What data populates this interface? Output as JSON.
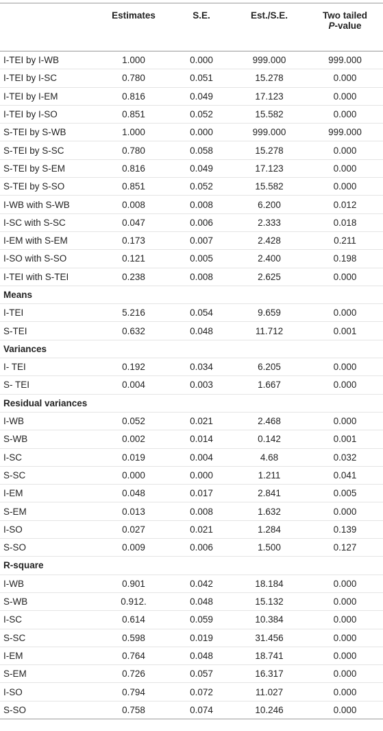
{
  "table": {
    "header": {
      "columns": [
        "Estimates",
        "S.E.",
        "Est./S.E."
      ],
      "last": {
        "line1": "Two tailed",
        "italic": "P",
        "rest": "-value"
      }
    },
    "rows": [
      [
        "I-TEI by I-WB",
        "1.000",
        "0.000",
        "999.000",
        "999.000"
      ],
      [
        "I-TEI by I-SC",
        "0.780",
        "0.051",
        "15.278",
        "0.000"
      ],
      [
        "I-TEI by I-EM",
        "0.816",
        "0.049",
        "17.123",
        "0.000"
      ],
      [
        "I-TEI by I-SO",
        "0.851",
        "0.052",
        "15.582",
        "0.000"
      ],
      [
        "S-TEI by S-WB",
        "1.000",
        "0.000",
        "999.000",
        "999.000"
      ],
      [
        "S-TEI by S-SC",
        "0.780",
        "0.058",
        "15.278",
        "0.000"
      ],
      [
        "S-TEI by S-EM",
        "0.816",
        "0.049",
        "17.123",
        "0.000"
      ],
      [
        "S-TEI by S-SO",
        "0.851",
        "0.052",
        "15.582",
        "0.000"
      ],
      [
        "I-WB with S-WB",
        "0.008",
        "0.008",
        "6.200",
        "0.012"
      ],
      [
        "I-SC with S-SC",
        "0.047",
        "0.006",
        "2.333",
        "0.018"
      ],
      [
        "I-EM with S-EM",
        "0.173",
        "0.007",
        "2.428",
        "0.211"
      ],
      [
        "I-SO with S-SO",
        "0.121",
        "0.005",
        "2.400",
        "0.198"
      ],
      [
        "I-TEI with S-TEI",
        "0.238",
        "0.008",
        "2.625",
        "0.000"
      ],
      [
        "Means"
      ],
      [
        "I-TEI",
        "5.216",
        "0.054",
        "9.659",
        "0.000"
      ],
      [
        "S-TEI",
        "0.632",
        "0.048",
        "11.712",
        "0.001"
      ],
      [
        "Variances"
      ],
      [
        "I- TEI",
        "0.192",
        "0.034",
        "6.205",
        "0.000"
      ],
      [
        "S- TEI",
        "0.004",
        "0.003",
        "1.667",
        "0.000"
      ],
      [
        "Residual variances"
      ],
      [
        "I-WB",
        "0.052",
        "0.021",
        "2.468",
        "0.000"
      ],
      [
        "S-WB",
        "0.002",
        "0.014",
        "0.142",
        "0.001"
      ],
      [
        "I-SC",
        "0.019",
        "0.004",
        "4.68",
        "0.032"
      ],
      [
        "S-SC",
        "0.000",
        "0.000",
        "1.211",
        "0.041"
      ],
      [
        "I-EM",
        "0.048",
        "0.017",
        "2.841",
        "0.005"
      ],
      [
        "S-EM",
        "0.013",
        "0.008",
        "1.632",
        "0.000"
      ],
      [
        "I-SO",
        "0.027",
        "0.021",
        "1.284",
        "0.139"
      ],
      [
        "S-SO",
        "0.009",
        "0.006",
        "1.500",
        "0.127"
      ],
      [
        "R-square"
      ],
      [
        "I-WB",
        "0.901",
        "0.042",
        "18.184",
        "0.000"
      ],
      [
        "S-WB",
        "0.912.",
        "0.048",
        "15.132",
        "0.000"
      ],
      [
        "I-SC",
        "0.614",
        "0.059",
        "10.384",
        "0.000"
      ],
      [
        "S-SC",
        "0.598",
        "0.019",
        "31.456",
        "0.000"
      ],
      [
        "I-EM",
        "0.764",
        "0.048",
        "18.741",
        "0.000"
      ],
      [
        "S-EM",
        "0.726",
        "0.057",
        "16.317",
        "0.000"
      ],
      [
        "I-SO",
        "0.794",
        "0.072",
        "11.027",
        "0.000"
      ],
      [
        "S-SO",
        "0.758",
        "0.074",
        "10.246",
        "0.000"
      ]
    ]
  }
}
